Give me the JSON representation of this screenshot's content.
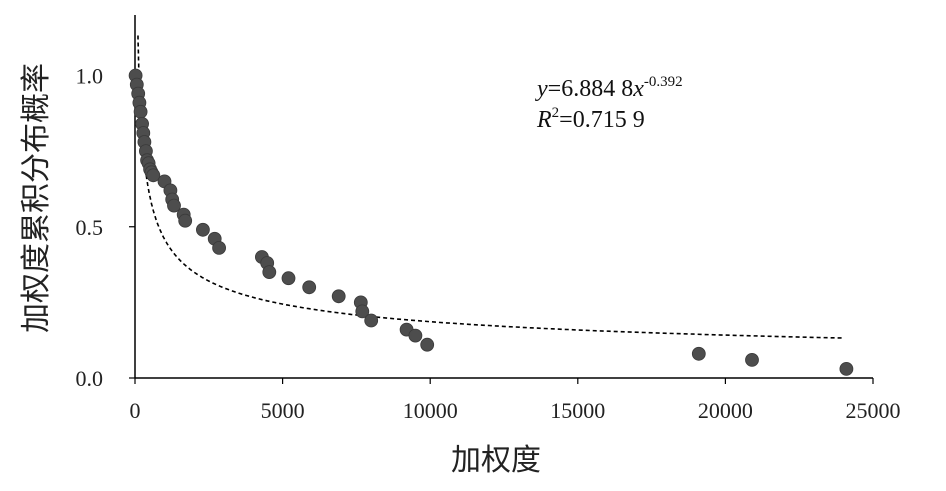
{
  "chart_data": {
    "type": "scatter",
    "xlabel": "加权度",
    "ylabel": "加权度累积分布概率",
    "xlim": [
      0,
      25000
    ],
    "ylim": [
      0,
      1.2
    ],
    "xticks": [
      "0",
      "5000",
      "10000",
      "15000",
      "20000",
      "25000"
    ],
    "yticks": [
      "0.0",
      "0.5",
      "1.0"
    ],
    "grid": false,
    "equation": {
      "line1_y": "y",
      "line1_coef": "=6.884 8",
      "line1_x": "x",
      "line1_exp": "-0.392",
      "line2_r": "R",
      "line2_sup": "2",
      "line2_val": "=0.715 9"
    },
    "fit": {
      "a": 6.8848,
      "b": -0.392,
      "x_range": [
        100,
        24000
      ]
    },
    "colors": {
      "points": "#4d4d4d",
      "axis": "#000000",
      "fit": "#000000"
    },
    "series": [
      {
        "x": [
          20,
          60,
          110,
          150,
          190,
          240,
          280,
          320,
          370,
          410,
          460,
          510,
          560,
          620,
          1000,
          1200,
          1260,
          1320,
          1650,
          1700,
          2300,
          2700,
          2850,
          4300,
          4480,
          4550,
          5200,
          5900,
          6900,
          7650,
          7700,
          8000,
          9200,
          9500,
          9900,
          19100,
          20900,
          24100
        ],
        "y": [
          1.0,
          0.97,
          0.94,
          0.91,
          0.88,
          0.84,
          0.81,
          0.78,
          0.75,
          0.72,
          0.71,
          0.69,
          0.68,
          0.67,
          0.65,
          0.62,
          0.59,
          0.57,
          0.54,
          0.52,
          0.49,
          0.46,
          0.43,
          0.4,
          0.38,
          0.35,
          0.33,
          0.3,
          0.27,
          0.25,
          0.22,
          0.19,
          0.16,
          0.14,
          0.11,
          0.08,
          0.06,
          0.03
        ]
      }
    ]
  }
}
